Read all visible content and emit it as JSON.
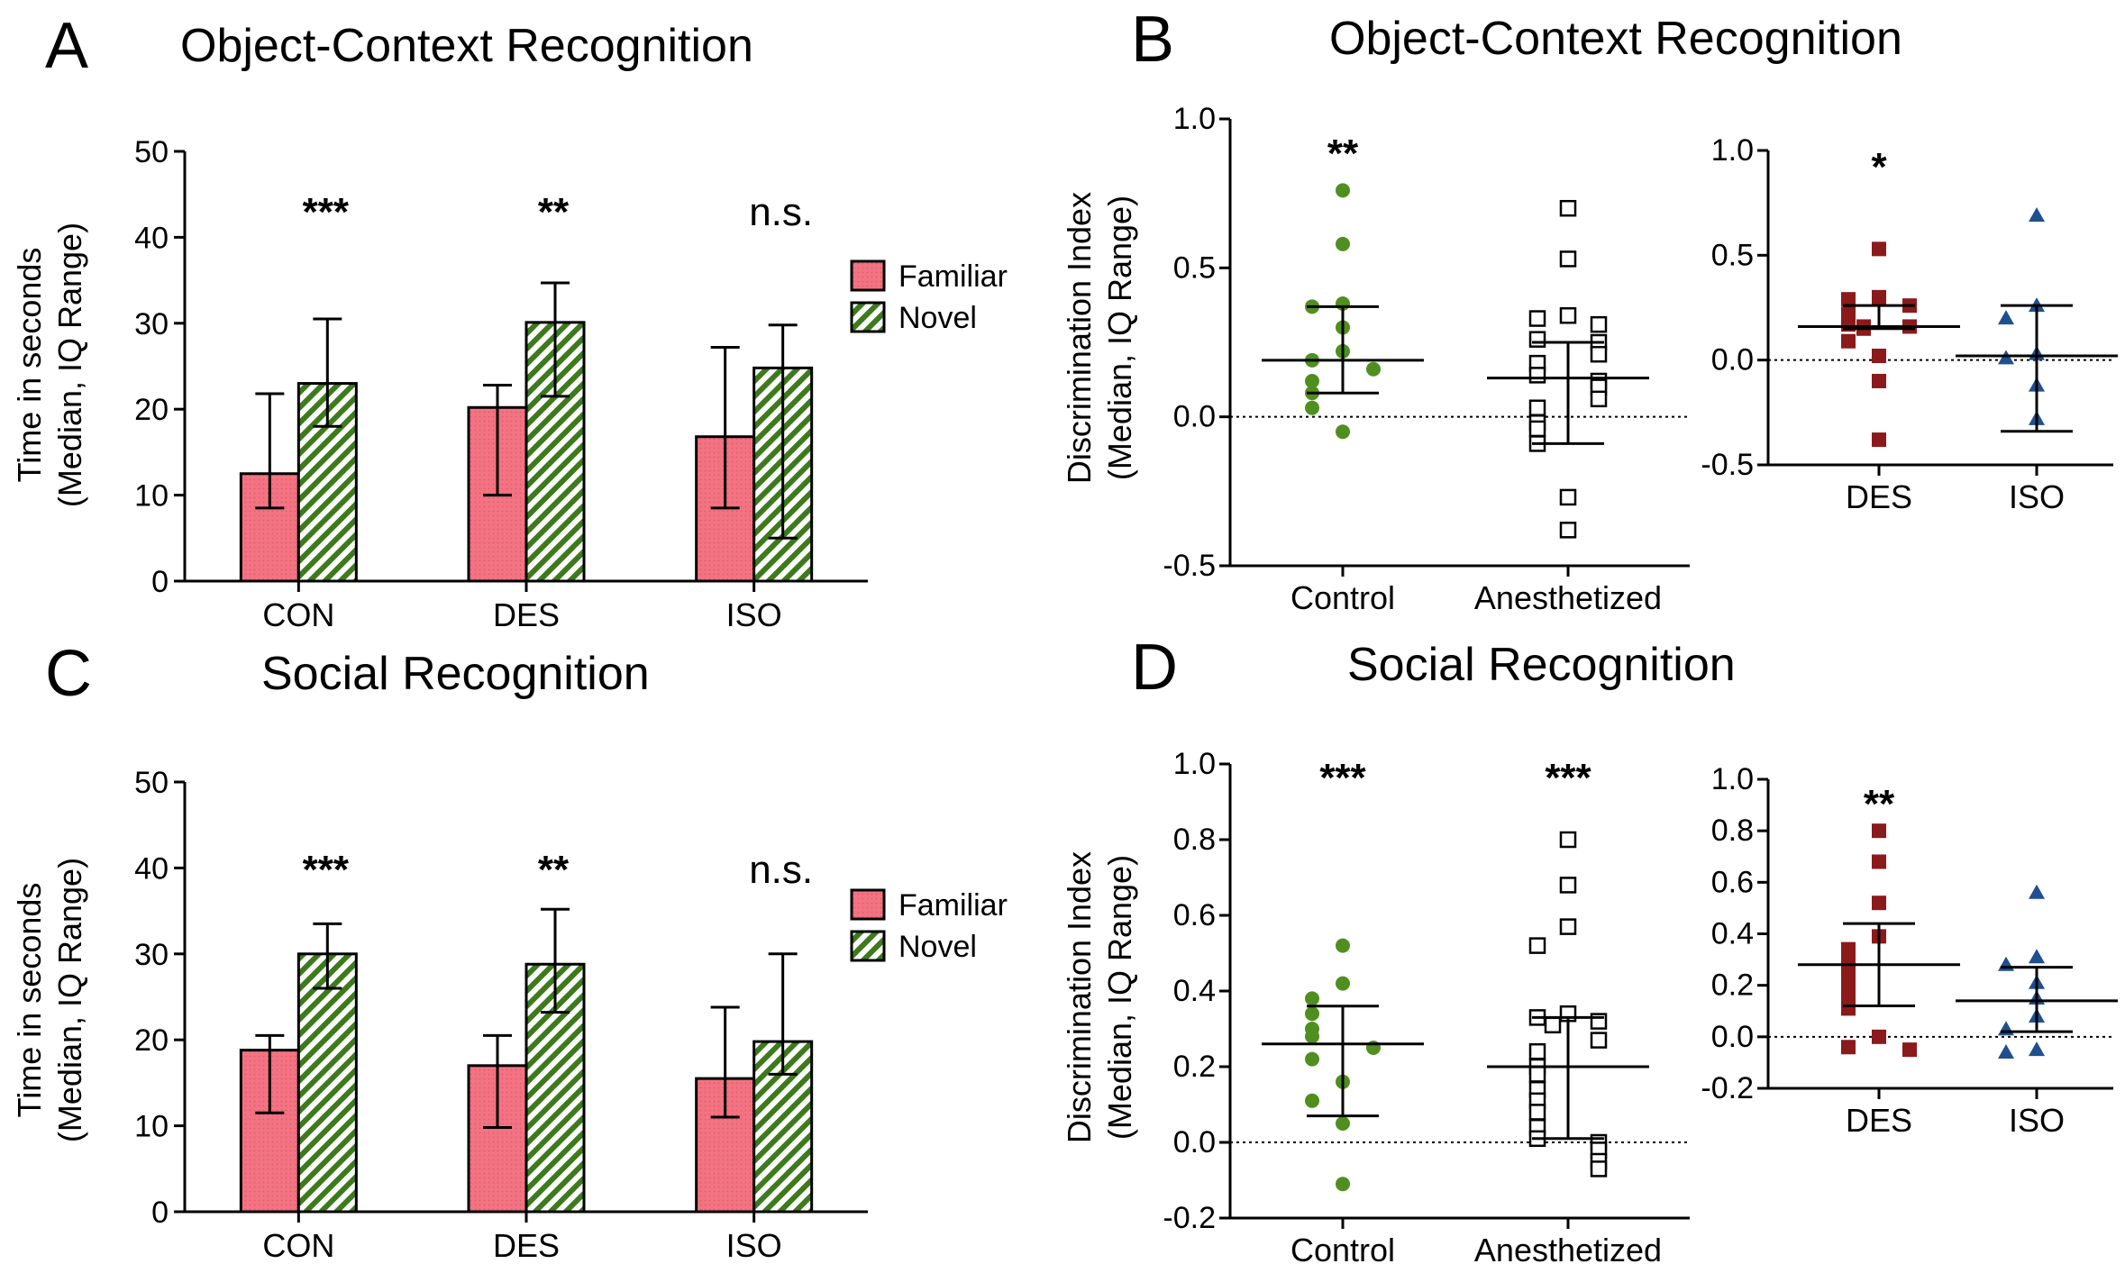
{
  "colors": {
    "familiar": "#f27382",
    "novel": "#3d7a1c",
    "control_dot": "#4f8f1f",
    "des_mark": "#8b1a1a",
    "iso_mark": "#1f4f8f"
  },
  "chart_data": [
    {
      "id": "A",
      "type": "bar",
      "letter": "A",
      "title": "Object-Context Recognition",
      "ylabel_line1": "Time in seconds",
      "ylabel_line2": "(Median, IQ Range)",
      "ylim": [
        0,
        50
      ],
      "yticks": [
        0,
        10,
        20,
        30,
        40,
        50
      ],
      "categories": [
        "CON",
        "DES",
        "ISO"
      ],
      "series": [
        {
          "name": "Familiar",
          "values": [
            12.5,
            20.2,
            16.8
          ],
          "err_low": [
            8.5,
            10.0,
            8.5
          ],
          "err_high": [
            21.8,
            22.8,
            27.2
          ]
        },
        {
          "name": "Novel",
          "values": [
            23.0,
            30.1,
            24.8
          ],
          "err_low": [
            18.0,
            21.5,
            5.0
          ],
          "err_high": [
            30.5,
            34.7,
            29.8
          ]
        }
      ],
      "significance": [
        "***",
        "**",
        "n.s."
      ],
      "legend": [
        "Familiar",
        "Novel"
      ]
    },
    {
      "id": "B",
      "type": "scatter",
      "letter": "B",
      "title": "Object-Context Recognition",
      "ylabel_line1": "Discrimination Index",
      "ylabel_line2": "(Median, IQ Range)",
      "left": {
        "ylim": [
          -0.5,
          1.0
        ],
        "yticks": [
          "-0.5",
          "0.0",
          "0.5",
          "1.0"
        ],
        "categories": [
          "Control",
          "Anesthetized"
        ],
        "groups": [
          {
            "name": "Control",
            "marker": "circle",
            "median": 0.19,
            "q1": 0.08,
            "q3": 0.37,
            "sig": "**",
            "points": [
              0.76,
              0.58,
              0.38,
              0.37,
              0.3,
              0.22,
              0.19,
              0.16,
              0.12,
              0.08,
              0.03,
              -0.05
            ]
          },
          {
            "name": "Anesthetized",
            "marker": "square-open",
            "median": 0.13,
            "q1": -0.09,
            "q3": 0.25,
            "sig": "",
            "points": [
              0.7,
              0.53,
              0.34,
              0.33,
              0.31,
              0.26,
              0.25,
              0.21,
              0.18,
              0.14,
              0.12,
              0.1,
              0.06,
              0.03,
              -0.02,
              -0.04,
              -0.09,
              -0.27,
              -0.38
            ]
          }
        ]
      },
      "right": {
        "ylim": [
          -0.5,
          1.0
        ],
        "yticks": [
          "-0.5",
          "0.0",
          "0.5",
          "1.0"
        ],
        "categories": [
          "DES",
          "ISO"
        ],
        "groups": [
          {
            "name": "DES",
            "marker": "square",
            "median": 0.16,
            "q1": 0.15,
            "q3": 0.26,
            "sig": "*",
            "points": [
              0.53,
              0.3,
              0.29,
              0.26,
              0.22,
              0.17,
              0.16,
              0.16,
              0.15,
              0.09,
              0.02,
              -0.1,
              -0.38
            ]
          },
          {
            "name": "ISO",
            "marker": "triangle",
            "median": 0.02,
            "q1": -0.34,
            "q3": 0.26,
            "sig": "",
            "points": [
              0.69,
              0.26,
              0.2,
              0.03,
              0.01,
              -0.12,
              -0.28
            ]
          }
        ]
      }
    },
    {
      "id": "C",
      "type": "bar",
      "letter": "C",
      "title": "Social Recognition",
      "ylabel_line1": "Time in seconds",
      "ylabel_line2": "(Median, IQ Range)",
      "ylim": [
        0,
        50
      ],
      "yticks": [
        0,
        10,
        20,
        30,
        40,
        50
      ],
      "categories": [
        "CON",
        "DES",
        "ISO"
      ],
      "series": [
        {
          "name": "Familiar",
          "values": [
            18.8,
            17.0,
            15.5
          ],
          "err_low": [
            11.5,
            9.8,
            11.0
          ],
          "err_high": [
            20.5,
            20.5,
            23.8
          ]
        },
        {
          "name": "Novel",
          "values": [
            30.0,
            28.8,
            19.8
          ],
          "err_low": [
            26.0,
            23.2,
            16.0
          ],
          "err_high": [
            33.5,
            35.2,
            30.0
          ]
        }
      ],
      "significance": [
        "***",
        "**",
        "n.s."
      ],
      "legend": [
        "Familiar",
        "Novel"
      ]
    },
    {
      "id": "D",
      "type": "scatter",
      "letter": "D",
      "title": "Social Recognition",
      "ylabel_line1": "Discrimination Index",
      "ylabel_line2": "(Median, IQ Range)",
      "left": {
        "ylim": [
          -0.2,
          1.0
        ],
        "yticks": [
          "-0.2",
          "0.0",
          "0.2",
          "0.4",
          "0.6",
          "0.8",
          "1.0"
        ],
        "categories": [
          "Control",
          "Anesthetized"
        ],
        "groups": [
          {
            "name": "Control",
            "marker": "circle",
            "median": 0.26,
            "q1": 0.07,
            "q3": 0.36,
            "sig": "***",
            "points": [
              0.52,
              0.42,
              0.38,
              0.34,
              0.3,
              0.28,
              0.25,
              0.22,
              0.16,
              0.11,
              0.05,
              -0.11
            ]
          },
          {
            "name": "Anesthetized",
            "marker": "square-open",
            "median": 0.2,
            "q1": 0.01,
            "q3": 0.33,
            "sig": "***",
            "points": [
              0.8,
              0.68,
              0.57,
              0.52,
              0.34,
              0.33,
              0.32,
              0.31,
              0.27,
              0.24,
              0.2,
              0.18,
              0.14,
              0.11,
              0.08,
              0.04,
              0.01,
              0.0,
              -0.02,
              -0.05,
              -0.07
            ]
          }
        ]
      },
      "right": {
        "ylim": [
          -0.2,
          1.0
        ],
        "yticks": [
          "-0.2",
          "0.0",
          "0.2",
          "0.4",
          "0.6",
          "0.8",
          "1.0"
        ],
        "categories": [
          "DES",
          "ISO"
        ],
        "groups": [
          {
            "name": "DES",
            "marker": "square",
            "median": 0.28,
            "q1": 0.12,
            "q3": 0.44,
            "sig": "**",
            "points": [
              0.8,
              0.68,
              0.52,
              0.39,
              0.34,
              0.3,
              0.27,
              0.23,
              0.2,
              0.16,
              0.11,
              0.0,
              -0.04,
              -0.05
            ]
          },
          {
            "name": "ISO",
            "marker": "triangle",
            "median": 0.14,
            "q1": 0.02,
            "q3": 0.27,
            "sig": "",
            "points": [
              0.56,
              0.31,
              0.28,
              0.21,
              0.15,
              0.08,
              0.03,
              -0.05,
              -0.06
            ]
          }
        ]
      }
    }
  ]
}
